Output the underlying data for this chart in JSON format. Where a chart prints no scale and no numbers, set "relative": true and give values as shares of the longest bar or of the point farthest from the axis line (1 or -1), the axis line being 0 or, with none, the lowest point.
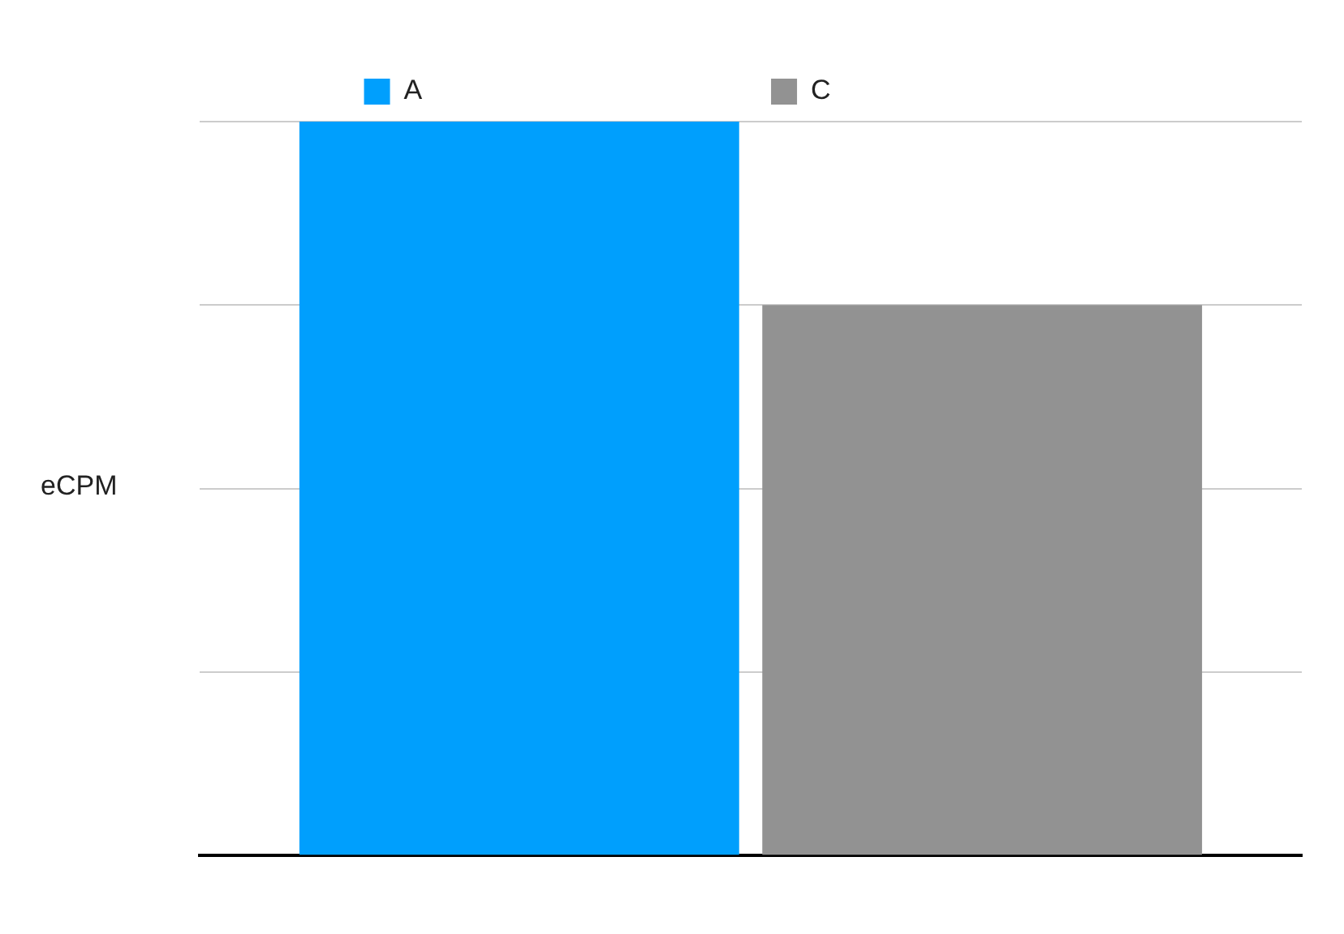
{
  "chart_data": {
    "type": "bar",
    "ylabel": "eCPM",
    "categories": [
      null
    ],
    "relative": true,
    "grid": "y",
    "legend": "top",
    "series": [
      {
        "name": "A",
        "color": "#009ffd",
        "values": [
          1
        ]
      },
      {
        "name": "C",
        "color": "#929292",
        "values": [
          0.75
        ]
      }
    ]
  }
}
